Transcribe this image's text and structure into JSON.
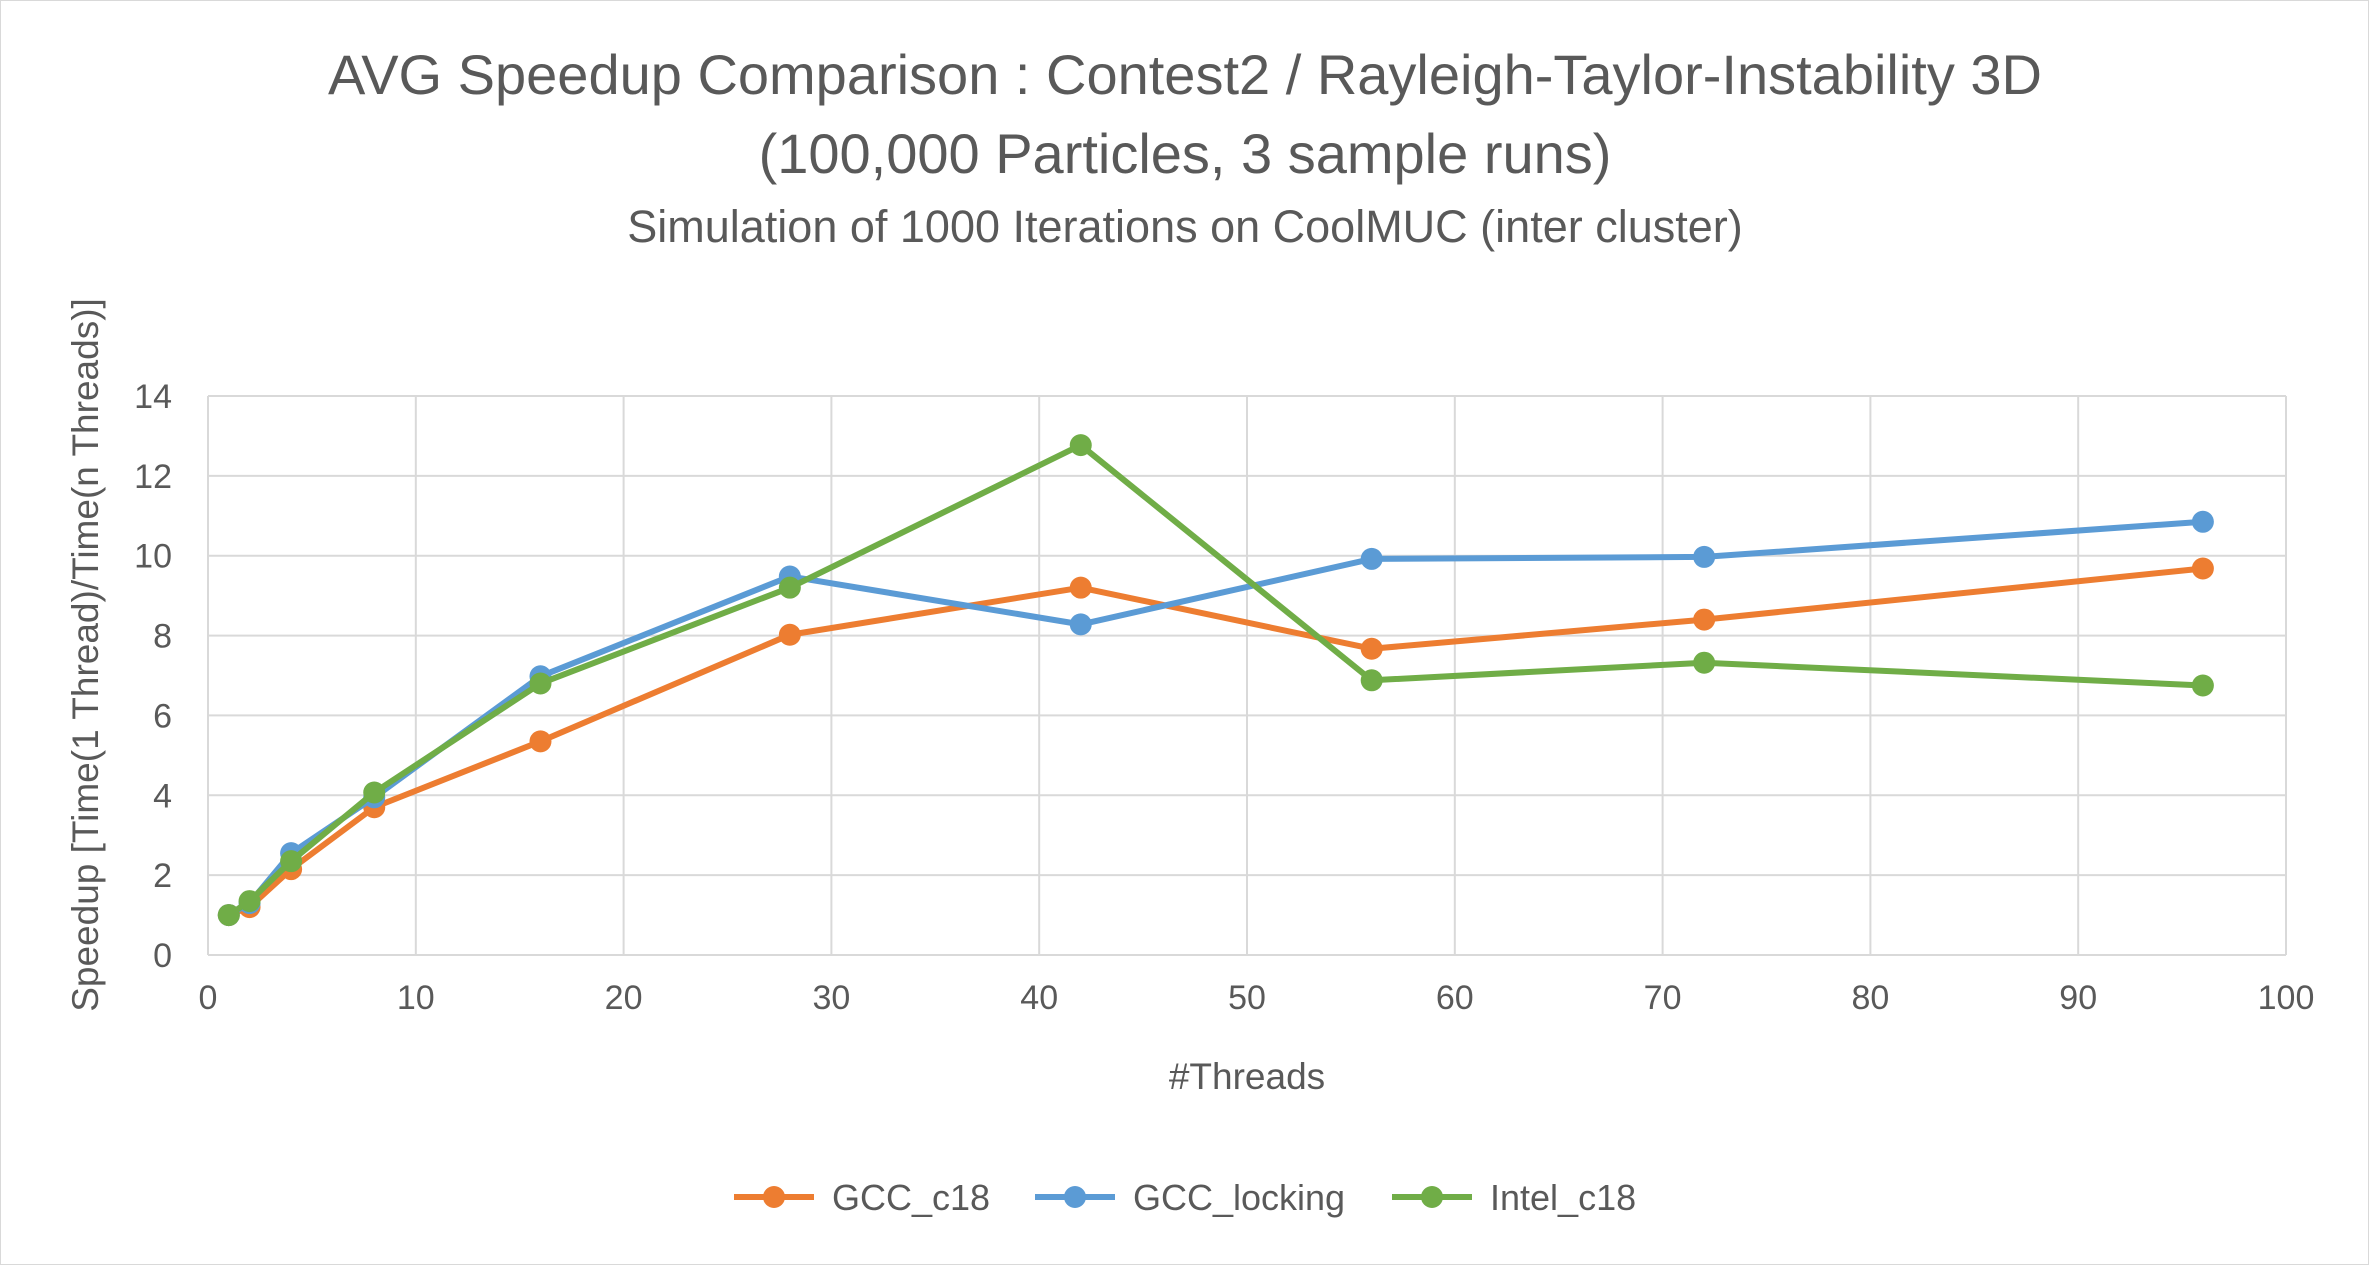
{
  "chart_data": {
    "type": "line",
    "title": "AVG Speedup Comparison : Contest2 / Rayleigh-Taylor-Instability 3D",
    "title_line2": "(100,000 Particles, 3 sample runs)",
    "subtitle": "Simulation of 1000 Iterations on CoolMUC (inter cluster)",
    "xlabel": "#Threads",
    "ylabel": "Speedup [Time(1 Thread)/Time(n Threads)]",
    "xlim": [
      0,
      100
    ],
    "ylim": [
      0,
      14
    ],
    "x_ticks": [
      "0",
      "10",
      "20",
      "30",
      "40",
      "50",
      "60",
      "70",
      "80",
      "90",
      "100"
    ],
    "y_ticks": [
      "0",
      "2",
      "4",
      "6",
      "8",
      "10",
      "12",
      "14"
    ],
    "grid": true,
    "legend_position": "bottom",
    "x": [
      1,
      2,
      4,
      8,
      16,
      28,
      42,
      56,
      72,
      96
    ],
    "series": [
      {
        "name": "GCC_c18",
        "color": "#ED7D31",
        "values": [
          1.0,
          1.2,
          2.15,
          3.7,
          5.35,
          8.02,
          9.2,
          7.67,
          8.4,
          9.68
        ]
      },
      {
        "name": "GCC_locking",
        "color": "#5B9BD5",
        "values": [
          1.0,
          1.3,
          2.55,
          3.95,
          6.98,
          9.48,
          8.28,
          9.92,
          9.97,
          10.85
        ]
      },
      {
        "name": "Intel_c18",
        "color": "#70AD47",
        "values": [
          1.0,
          1.35,
          2.35,
          4.07,
          6.8,
          9.2,
          12.77,
          6.88,
          7.32,
          6.75
        ]
      }
    ]
  }
}
